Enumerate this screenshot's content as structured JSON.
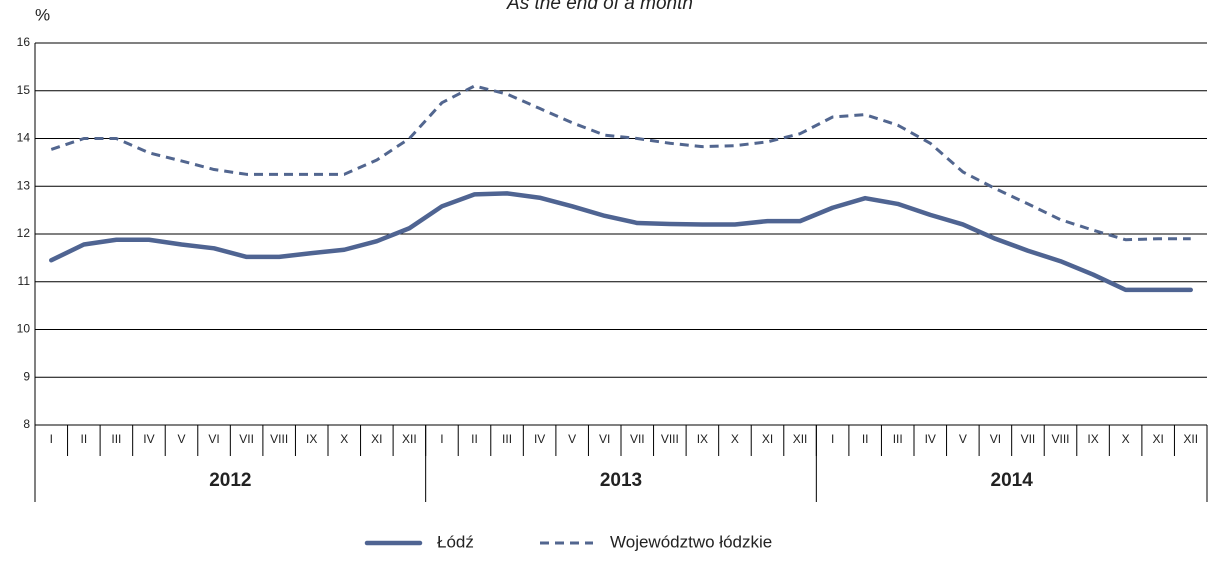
{
  "chart_data": {
    "type": "line",
    "title": "As the end of a month",
    "y_unit": "%",
    "categories": [
      "I",
      "II",
      "III",
      "IV",
      "V",
      "VI",
      "VII",
      "VIII",
      "IX",
      "X",
      "XI",
      "XII",
      "I",
      "II",
      "III",
      "IV",
      "V",
      "VI",
      "VII",
      "VIII",
      "IX",
      "X",
      "XI",
      "XII",
      "I",
      "II",
      "III",
      "IV",
      "V",
      "VI",
      "VII",
      "VIII",
      "IX",
      "X",
      "XI",
      "XII"
    ],
    "years": [
      "2012",
      "2013",
      "2014"
    ],
    "series": [
      {
        "name": "Łódź",
        "color": "#4f6492",
        "dash": false,
        "values": [
          11.45,
          11.78,
          11.88,
          11.88,
          11.78,
          11.7,
          11.52,
          11.52,
          11.6,
          11.67,
          11.85,
          12.12,
          12.58,
          12.83,
          12.85,
          12.76,
          12.58,
          12.38,
          12.23,
          12.21,
          12.2,
          12.2,
          12.27,
          12.27,
          12.55,
          12.75,
          12.63,
          12.4,
          12.2,
          11.9,
          11.65,
          11.43,
          11.15,
          10.83,
          10.83,
          10.83
        ]
      },
      {
        "name": "Województwo łódzkie",
        "color": "#52668f",
        "dash": true,
        "values": [
          13.77,
          14.0,
          14.0,
          13.7,
          13.53,
          13.35,
          13.25,
          13.25,
          13.25,
          13.25,
          13.55,
          14.0,
          14.75,
          15.1,
          14.93,
          14.63,
          14.33,
          14.07,
          14.0,
          13.9,
          13.83,
          13.85,
          13.93,
          14.1,
          14.45,
          14.5,
          14.28,
          13.9,
          13.3,
          12.95,
          12.63,
          12.3,
          12.08,
          11.88,
          11.9,
          11.9
        ]
      }
    ],
    "ylim": [
      8,
      16
    ],
    "yticks": [
      8,
      9,
      10,
      11,
      12,
      13,
      14,
      15,
      16
    ],
    "grid": true
  }
}
